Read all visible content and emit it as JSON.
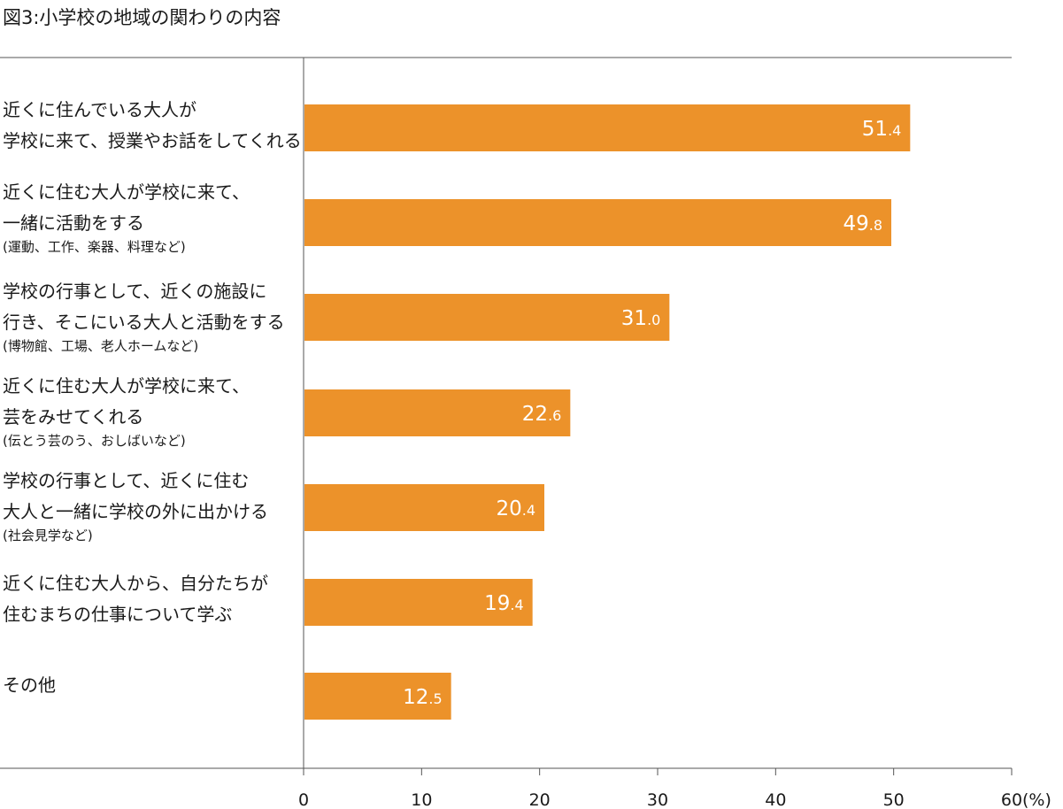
{
  "chart_data": {
    "type": "bar",
    "orientation": "horizontal",
    "title": "図3:小学校の地域の関わりの内容",
    "unit": "(%)",
    "xlim": [
      0,
      60
    ],
    "ticks": [
      0,
      10,
      20,
      30,
      40,
      50,
      60
    ],
    "bar_color": "#EC922A",
    "grid": false,
    "categories": [
      {
        "lines": [
          "近くに住んでいる大人が",
          "学校に来て、授業やお話をしてくれる"
        ],
        "note": "",
        "value": 51.4,
        "value_int": "51",
        "value_dec": ".4"
      },
      {
        "lines": [
          "近くに住む大人が学校に来て、",
          "一緒に活動をする"
        ],
        "note": "(運動、工作、楽器、料理など)",
        "value": 49.8,
        "value_int": "49",
        "value_dec": ".8"
      },
      {
        "lines": [
          "学校の行事として、近くの施設に",
          "行き、そこにいる大人と活動をする"
        ],
        "note": "(博物館、工場、老人ホームなど)",
        "value": 31.0,
        "value_int": "31",
        "value_dec": ".0"
      },
      {
        "lines": [
          "近くに住む大人が学校に来て、",
          "芸をみせてくれる"
        ],
        "note": "(伝とう芸のう、おしばいなど)",
        "value": 22.6,
        "value_int": "22",
        "value_dec": ".6"
      },
      {
        "lines": [
          "学校の行事として、近くに住む",
          "大人と一緒に学校の外に出かける"
        ],
        "note": "(社会見学など)",
        "value": 20.4,
        "value_int": "20",
        "value_dec": ".4"
      },
      {
        "lines": [
          "近くに住む大人から、自分たちが",
          "住むまちの仕事について学ぶ"
        ],
        "note": "",
        "value": 19.4,
        "value_int": "19",
        "value_dec": ".4"
      },
      {
        "lines": [
          "その他"
        ],
        "note": "",
        "value": 12.5,
        "value_int": "12",
        "value_dec": ".5"
      }
    ]
  }
}
